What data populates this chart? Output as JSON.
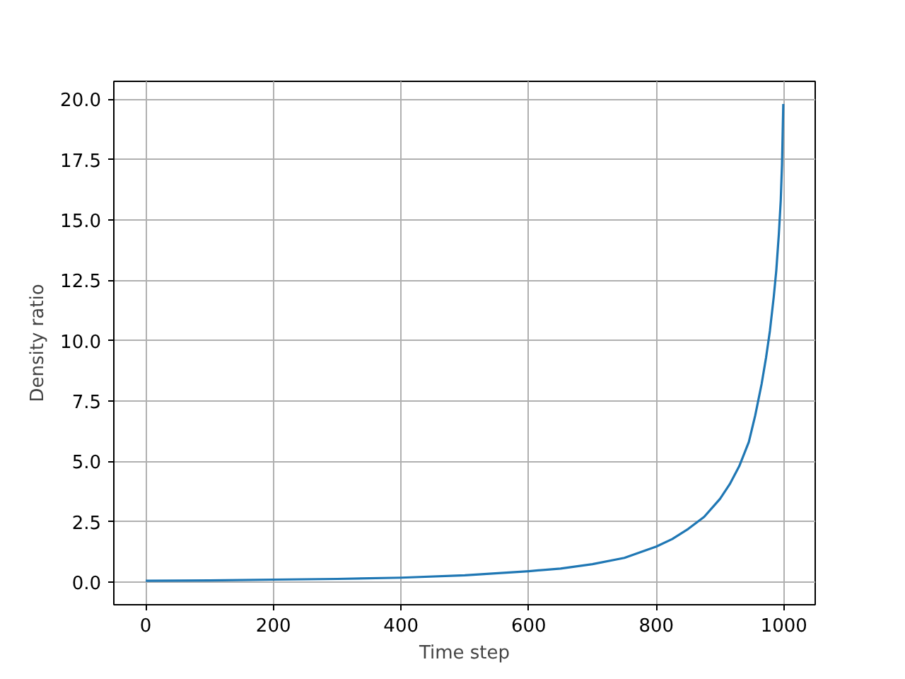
{
  "chart_data": {
    "type": "line",
    "xlabel": "Time step",
    "ylabel": "Density ratio",
    "x": [
      0,
      100,
      200,
      300,
      400,
      500,
      600,
      650,
      700,
      750,
      800,
      825,
      850,
      875,
      900,
      915,
      930,
      945,
      955,
      965,
      972,
      978,
      984,
      988,
      992,
      995,
      997,
      999
    ],
    "values": [
      0.05,
      0.07,
      0.1,
      0.13,
      0.18,
      0.28,
      0.45,
      0.56,
      0.74,
      1.0,
      1.47,
      1.78,
      2.2,
      2.7,
      3.45,
      4.05,
      4.8,
      5.8,
      6.9,
      8.2,
      9.3,
      10.4,
      11.8,
      12.9,
      14.4,
      15.8,
      17.3,
      19.8
    ],
    "color": "#1f77b4",
    "xlim": [
      -50,
      1049
    ],
    "ylim": [
      -0.94,
      20.74
    ],
    "xticks": [
      0,
      200,
      400,
      600,
      800,
      1000
    ],
    "yticks": [
      {
        "value": 0,
        "label": "0.0"
      },
      2.5,
      {
        "value": 5,
        "label": "5.0"
      },
      7.5,
      {
        "value": 10,
        "label": "10.0"
      },
      12.5,
      {
        "value": 15,
        "label": "15.0"
      },
      17.5,
      {
        "value": 20,
        "label": "20.0"
      }
    ],
    "grid": true
  }
}
